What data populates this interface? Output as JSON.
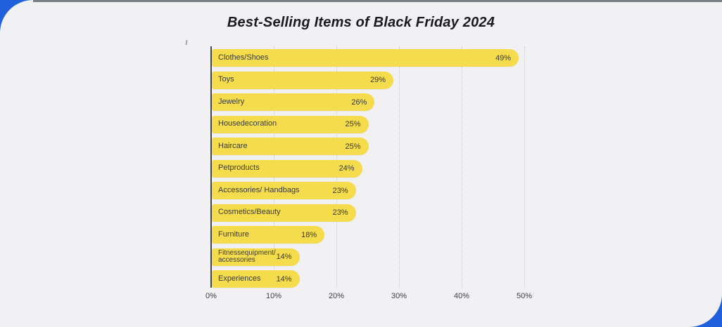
{
  "page": {
    "title": "Best-Selling Items of Black Friday 2024",
    "theme": {
      "card_background": "#F1F1F3",
      "accent_blue": "#2060DC",
      "top_strip_gray": "#7A7E85",
      "bar_yellow": "#F5DC4D",
      "text_dark": "#3A3A3C",
      "gridline_gray": "#C7C8CB",
      "axis_dark": "#47474B"
    }
  },
  "chart_data": {
    "type": "bar",
    "orientation": "horizontal",
    "title": "Best-Selling Items of Black Friday 2024",
    "categories": [
      "Clothes/Shoes",
      "Toys",
      "Jewelry",
      "Housedecoration",
      "Haircare",
      "Petproducts",
      "Accessories/ Handbags",
      "Cosmetics/Beauty",
      "Furniture",
      "Fitnessequipment/ accessories",
      "Experiences"
    ],
    "values": [
      49,
      29,
      26,
      25,
      25,
      24,
      23,
      23,
      18,
      14,
      14
    ],
    "value_labels": [
      "49%",
      "29%",
      "26%",
      "25%",
      "25%",
      "24%",
      "23%",
      "23%",
      "18%",
      "14%",
      "14%"
    ],
    "x_ticks": [
      "0%",
      "10%",
      "20%",
      "30%",
      "40%",
      "50%"
    ],
    "xlim": [
      0,
      50
    ],
    "xlabel": "",
    "ylabel": "",
    "grid": "vertical-dotted",
    "legend": "none",
    "bar_color": "#F5DC4D",
    "value_label_position": "inside-right",
    "category_label_position": "inside-left"
  }
}
